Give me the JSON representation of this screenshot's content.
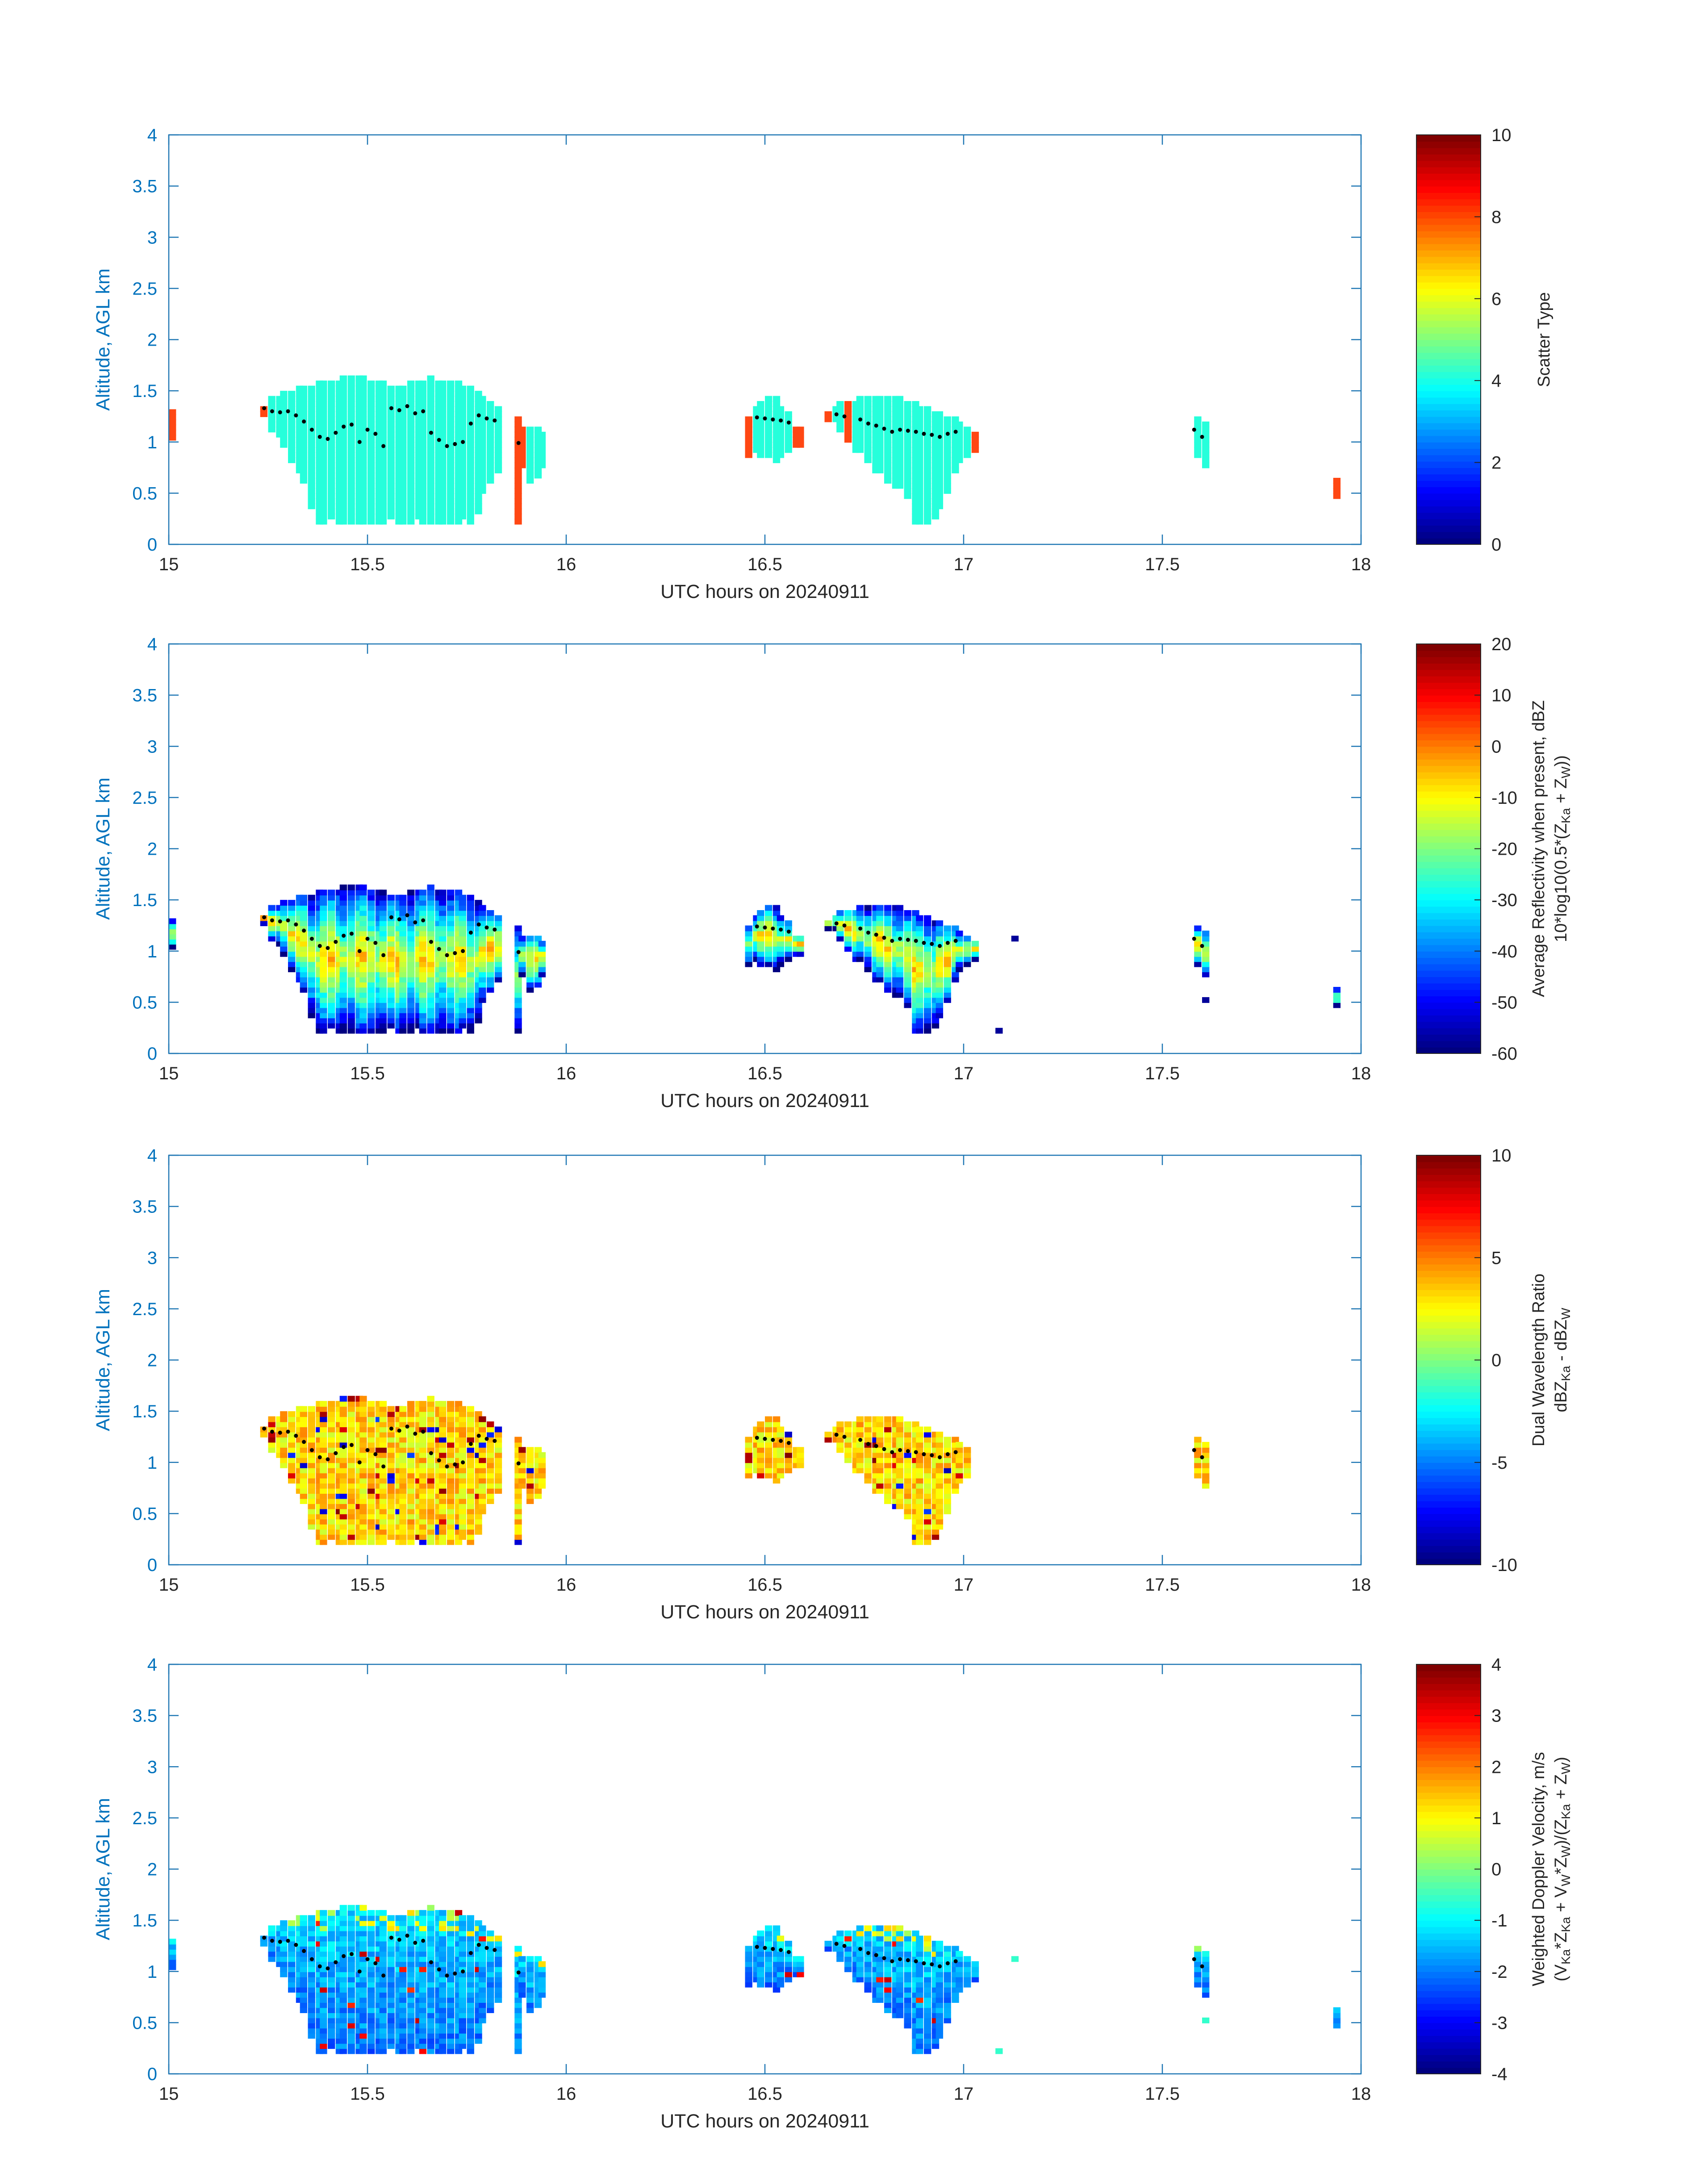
{
  "figure": {
    "colors": {
      "axis": "#1f77b4",
      "axis_label": "#0072bd",
      "text": "#262626",
      "background": "#ffffff",
      "dots": "#000000"
    },
    "colormap": "jet"
  },
  "chart_data": [
    {
      "type": "heatmap",
      "xlabel": "UTC hours on 20240911",
      "ylabel": "Altitude, AGL km",
      "xlim": [
        15,
        18
      ],
      "ylim": [
        0,
        4
      ],
      "x_ticks": [
        "15",
        "15.5",
        "16",
        "16.5",
        "17",
        "17.5",
        "18"
      ],
      "y_ticks": [
        "0",
        "0.5",
        "1",
        "1.5",
        "2",
        "2.5",
        "3",
        "3.5",
        "4"
      ],
      "colorbar": {
        "label_lines": [
          "Scatter Type"
        ],
        "clim": [
          0,
          10
        ],
        "ticks": [
          "0",
          "2",
          "4",
          "6",
          "8",
          "10"
        ]
      },
      "mode": "categorical",
      "cloud_value": 4,
      "edge_value": 8.3,
      "cloud_color": "#26ffdb",
      "edge_color": "#ff4713",
      "grid": false
    },
    {
      "type": "heatmap",
      "xlabel": "UTC hours on 20240911",
      "ylabel": "Altitude, AGL km",
      "xlim": [
        15,
        18
      ],
      "ylim": [
        0,
        4
      ],
      "x_ticks": [
        "15",
        "15.5",
        "16",
        "16.5",
        "17",
        "17.5",
        "18"
      ],
      "y_ticks": [
        "0",
        "0.5",
        "1",
        "1.5",
        "2",
        "2.5",
        "3",
        "3.5",
        "4"
      ],
      "colorbar": {
        "label_lines": [
          "Average Reflectivity when present, dBZ",
          "10*log10(0.5*(Z",
          "Ka",
          " + Z",
          "W",
          "))"
        ],
        "clim": [
          -60,
          20
        ],
        "ticks": [
          "-60",
          "-50",
          "-40",
          "-30",
          "-20",
          "-10",
          "0",
          "10",
          "20"
        ]
      },
      "mode": "reflectivity",
      "typical_range_dBZ": [
        -60,
        5
      ],
      "grid": false
    },
    {
      "type": "heatmap",
      "xlabel": "UTC hours on 20240911",
      "ylabel": "Altitude, AGL km",
      "xlim": [
        15,
        18
      ],
      "ylim": [
        0,
        4
      ],
      "x_ticks": [
        "15",
        "15.5",
        "16",
        "16.5",
        "17",
        "17.5",
        "18"
      ],
      "y_ticks": [
        "0",
        "0.5",
        "1",
        "1.5",
        "2",
        "2.5",
        "3",
        "3.5",
        "4"
      ],
      "colorbar": {
        "label_lines": [
          "Dual Wavelength Ratio",
          "dBZ",
          "Ka",
          " - dBZ",
          "W"
        ],
        "clim": [
          -10,
          10
        ],
        "ticks": [
          "-10",
          "-5",
          "0",
          "5",
          "10"
        ]
      },
      "mode": "dwr",
      "typical_range_dB": [
        -2,
        5
      ],
      "grid": false
    },
    {
      "type": "heatmap",
      "xlabel": "UTC hours on 20240911",
      "ylabel": "Altitude, AGL km",
      "xlim": [
        15,
        18
      ],
      "ylim": [
        0,
        4
      ],
      "x_ticks": [
        "15",
        "15.5",
        "16",
        "16.5",
        "17",
        "17.5",
        "18"
      ],
      "y_ticks": [
        "0",
        "0.5",
        "1",
        "1.5",
        "2",
        "2.5",
        "3",
        "3.5",
        "4"
      ],
      "colorbar": {
        "label_lines": [
          "Weighted Doppler Velocity, m/s",
          "(V",
          "Ka",
          "*Z",
          "Ka",
          " + V",
          "W",
          "*Z",
          "W",
          ")/(Z",
          "Ka",
          " + Z",
          "W",
          ")"
        ],
        "clim": [
          -4,
          4
        ],
        "ticks": [
          "-4",
          "-3",
          "-2",
          "-1",
          "0",
          "1",
          "2",
          "3",
          "4"
        ]
      },
      "mode": "velocity",
      "typical_range_ms": [
        -2.5,
        1
      ],
      "grid": false
    }
  ],
  "cloud_columns": {
    "time_step_hours": 0.0167,
    "altitude_step_km": 0.05,
    "columns": [
      [
        15.0,
        1.02,
        1.28
      ],
      [
        15.23,
        1.25,
        1.35
      ],
      [
        15.25,
        1.1,
        1.42
      ],
      [
        15.27,
        1.05,
        1.45
      ],
      [
        15.28,
        0.95,
        1.5
      ],
      [
        15.3,
        0.8,
        1.5
      ],
      [
        15.32,
        0.7,
        1.52
      ],
      [
        15.33,
        0.6,
        1.55
      ],
      [
        15.35,
        0.35,
        1.55
      ],
      [
        15.37,
        0.2,
        1.6
      ],
      [
        15.38,
        0.2,
        1.6
      ],
      [
        15.4,
        0.25,
        1.6
      ],
      [
        15.42,
        0.2,
        1.6
      ],
      [
        15.43,
        0.2,
        1.62
      ],
      [
        15.45,
        0.2,
        1.62
      ],
      [
        15.47,
        0.2,
        1.62
      ],
      [
        15.48,
        0.2,
        1.62
      ],
      [
        15.5,
        0.2,
        1.6
      ],
      [
        15.52,
        0.2,
        1.6
      ],
      [
        15.53,
        0.2,
        1.58
      ],
      [
        15.55,
        0.25,
        1.55
      ],
      [
        15.57,
        0.2,
        1.52
      ],
      [
        15.58,
        0.2,
        1.55
      ],
      [
        15.6,
        0.2,
        1.58
      ],
      [
        15.62,
        0.25,
        1.6
      ],
      [
        15.63,
        0.2,
        1.6
      ],
      [
        15.65,
        0.2,
        1.62
      ],
      [
        15.67,
        0.2,
        1.6
      ],
      [
        15.68,
        0.2,
        1.6
      ],
      [
        15.7,
        0.2,
        1.58
      ],
      [
        15.72,
        0.2,
        1.58
      ],
      [
        15.73,
        0.25,
        1.55
      ],
      [
        15.75,
        0.2,
        1.55
      ],
      [
        15.77,
        0.3,
        1.5
      ],
      [
        15.78,
        0.5,
        1.45
      ],
      [
        15.8,
        0.6,
        1.4
      ],
      [
        15.82,
        0.7,
        1.35
      ],
      [
        15.87,
        0.2,
        1.25
      ],
      [
        15.88,
        0.75,
        1.15
      ],
      [
        15.9,
        0.6,
        1.15
      ],
      [
        15.92,
        0.65,
        1.15
      ],
      [
        15.93,
        0.75,
        1.1
      ],
      [
        16.45,
        0.85,
        1.25
      ],
      [
        16.47,
        0.9,
        1.35
      ],
      [
        16.48,
        0.85,
        1.4
      ],
      [
        16.5,
        0.85,
        1.42
      ],
      [
        16.52,
        0.8,
        1.42
      ],
      [
        16.53,
        0.85,
        1.35
      ],
      [
        16.55,
        0.9,
        1.3
      ],
      [
        16.57,
        0.95,
        1.15
      ],
      [
        16.58,
        0.95,
        1.15
      ],
      [
        16.65,
        1.2,
        1.3
      ],
      [
        16.67,
        1.2,
        1.35
      ],
      [
        16.68,
        1.1,
        1.38
      ],
      [
        16.7,
        1.0,
        1.4
      ],
      [
        16.72,
        0.9,
        1.4
      ],
      [
        16.73,
        0.9,
        1.42
      ],
      [
        16.75,
        0.8,
        1.42
      ],
      [
        16.77,
        0.7,
        1.42
      ],
      [
        16.78,
        0.7,
        1.42
      ],
      [
        16.8,
        0.6,
        1.42
      ],
      [
        16.82,
        0.55,
        1.42
      ],
      [
        16.83,
        0.55,
        1.42
      ],
      [
        16.85,
        0.45,
        1.4
      ],
      [
        16.87,
        0.2,
        1.38
      ],
      [
        16.88,
        0.2,
        1.35
      ],
      [
        16.9,
        0.2,
        1.35
      ],
      [
        16.92,
        0.25,
        1.3
      ],
      [
        16.93,
        0.35,
        1.3
      ],
      [
        16.95,
        0.5,
        1.25
      ],
      [
        16.97,
        0.7,
        1.25
      ],
      [
        16.98,
        0.8,
        1.2
      ],
      [
        17.0,
        0.85,
        1.15
      ],
      [
        17.02,
        0.9,
        1.1
      ],
      [
        17.58,
        0.85,
        1.22
      ],
      [
        17.6,
        0.75,
        1.2
      ],
      [
        17.93,
        0.45,
        0.62
      ]
    ],
    "isolated_points": [
      [
        17.12,
        1.1
      ],
      [
        17.08,
        0.2
      ],
      [
        17.6,
        0.5
      ]
    ]
  },
  "black_dots": [
    [
      15.24,
      1.33
    ],
    [
      15.26,
      1.3
    ],
    [
      15.28,
      1.29
    ],
    [
      15.3,
      1.3
    ],
    [
      15.32,
      1.26
    ],
    [
      15.34,
      1.2
    ],
    [
      15.36,
      1.12
    ],
    [
      15.38,
      1.05
    ],
    [
      15.4,
      1.03
    ],
    [
      15.42,
      1.09
    ],
    [
      15.44,
      1.15
    ],
    [
      15.46,
      1.17
    ],
    [
      15.48,
      1.0
    ],
    [
      15.5,
      1.12
    ],
    [
      15.52,
      1.08
    ],
    [
      15.54,
      0.96
    ],
    [
      15.56,
      1.33
    ],
    [
      15.58,
      1.31
    ],
    [
      15.6,
      1.35
    ],
    [
      15.62,
      1.28
    ],
    [
      15.64,
      1.3
    ],
    [
      15.66,
      1.09
    ],
    [
      15.68,
      1.02
    ],
    [
      15.7,
      0.96
    ],
    [
      15.72,
      0.98
    ],
    [
      15.74,
      1.0
    ],
    [
      15.76,
      1.18
    ],
    [
      15.78,
      1.26
    ],
    [
      15.8,
      1.23
    ],
    [
      15.82,
      1.21
    ],
    [
      15.88,
      0.99
    ],
    [
      16.48,
      1.24
    ],
    [
      16.5,
      1.23
    ],
    [
      16.52,
      1.22
    ],
    [
      16.54,
      1.21
    ],
    [
      16.56,
      1.19
    ],
    [
      16.68,
      1.27
    ],
    [
      16.7,
      1.25
    ],
    [
      16.74,
      1.22
    ],
    [
      16.76,
      1.18
    ],
    [
      16.78,
      1.16
    ],
    [
      16.8,
      1.13
    ],
    [
      16.82,
      1.1
    ],
    [
      16.84,
      1.12
    ],
    [
      16.86,
      1.11
    ],
    [
      16.88,
      1.1
    ],
    [
      16.9,
      1.08
    ],
    [
      16.92,
      1.07
    ],
    [
      16.94,
      1.05
    ],
    [
      16.96,
      1.08
    ],
    [
      16.98,
      1.1
    ],
    [
      17.58,
      1.12
    ],
    [
      17.6,
      1.05
    ]
  ]
}
